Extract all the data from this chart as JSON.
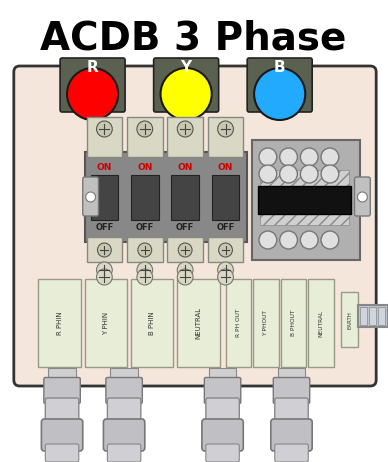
{
  "title": "ACDB 3 Phase",
  "title_fontsize": 28,
  "bg_color": "#f5e6dc",
  "box_edge": "#333333",
  "phase_labels": [
    "R",
    "Y",
    "B"
  ],
  "phase_colors": [
    "#ff0000",
    "#ffff00",
    "#22aaff"
  ],
  "phase_bg": "#5a6150",
  "mcb_on_text": "#cc0000",
  "terminal_bg": "#e8edd8",
  "terminal_edge": "#999988",
  "earth_label": "EARTH",
  "input_labels": [
    "R PHIN",
    "Y PHIN",
    "B PHIN",
    "NEUTRAL"
  ],
  "output_labels": [
    "R PH OUT",
    "Y PHOUT",
    "B PHOUT",
    "NEUTRAL"
  ],
  "screw_color": "#aaaaaa",
  "mcb_body_color": "#888888",
  "mcb_switch_color": "#555555",
  "mcb_top_color": "#d8d8c0",
  "bus_hatch_color": "#aaaaaa",
  "gland_color": "#c8c8cc"
}
